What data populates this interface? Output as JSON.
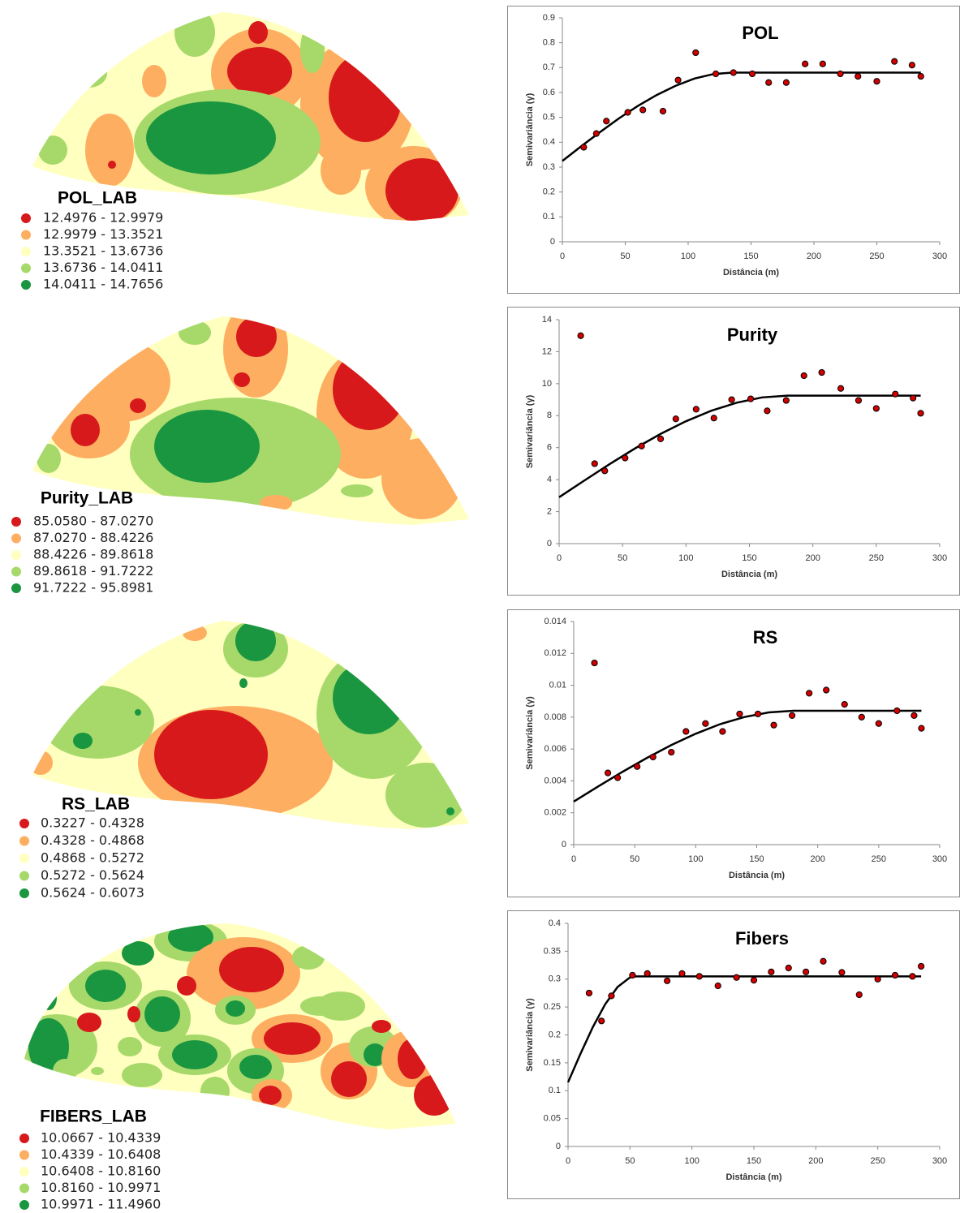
{
  "maps": [
    {
      "legend_title": "POL_LAB",
      "legend": [
        {
          "label": "12.4976 - 12.9979",
          "color": "#d7191c"
        },
        {
          "label": "12.9979 - 13.3521",
          "color": "#fdae61"
        },
        {
          "label": "13.3521 - 13.6736",
          "color": "#ffffbf"
        },
        {
          "label": "13.6736 - 14.0411",
          "color": "#a6d96a"
        },
        {
          "label": "14.0411 - 14.7656",
          "color": "#1a9641"
        }
      ]
    },
    {
      "legend_title": "Purity_LAB",
      "legend": [
        {
          "label": "85.0580 - 87.0270",
          "color": "#d7191c"
        },
        {
          "label": "87.0270 - 88.4226",
          "color": "#fdae61"
        },
        {
          "label": "88.4226 - 89.8618",
          "color": "#ffffbf"
        },
        {
          "label": "89.8618 - 91.7222",
          "color": "#a6d96a"
        },
        {
          "label": "91.7222 - 95.8981",
          "color": "#1a9641"
        }
      ]
    },
    {
      "legend_title": "RS_LAB",
      "legend": [
        {
          "label": "0.3227 - 0.4328",
          "color": "#d7191c"
        },
        {
          "label": "0.4328 - 0.4868",
          "color": "#fdae61"
        },
        {
          "label": "0.4868 - 0.5272",
          "color": "#ffffbf"
        },
        {
          "label": "0.5272 - 0.5624",
          "color": "#a6d96a"
        },
        {
          "label": "0.5624 - 0.6073",
          "color": "#1a9641"
        }
      ]
    },
    {
      "legend_title": "FIBERS_LAB",
      "legend": [
        {
          "label": "10.0667 - 10.4339",
          "color": "#d7191c"
        },
        {
          "label": "10.4339 - 10.6408",
          "color": "#fdae61"
        },
        {
          "label": "10.6408 - 10.8160",
          "color": "#ffffbf"
        },
        {
          "label": "10.8160 - 10.9971",
          "color": "#a6d96a"
        },
        {
          "label": "10.9971 - 11.4960",
          "color": "#1a9641"
        }
      ]
    }
  ],
  "chart_data": [
    {
      "type": "scatter",
      "title": "POL",
      "x_label": "Distância (m)",
      "y_label": "Semivariância (γ)",
      "xlim": [
        0,
        300
      ],
      "ylim": [
        0,
        0.9
      ],
      "xticks": [
        0,
        50,
        100,
        150,
        200,
        250,
        300
      ],
      "yticks": [
        0,
        0.1,
        0.2,
        0.3,
        0.4,
        0.5,
        0.6,
        0.7,
        0.8,
        0.9
      ],
      "points": {
        "color": "#d00000",
        "x": [
          17,
          27,
          35,
          52,
          64,
          80,
          92,
          106,
          122,
          136,
          151,
          164,
          178,
          193,
          207,
          221,
          235,
          250,
          264,
          278,
          285
        ],
        "y": [
          0.38,
          0.435,
          0.485,
          0.52,
          0.53,
          0.525,
          0.65,
          0.76,
          0.675,
          0.68,
          0.675,
          0.64,
          0.64,
          0.715,
          0.715,
          0.675,
          0.665,
          0.645,
          0.725,
          0.71,
          0.665
        ]
      },
      "fit": {
        "color": "#000000",
        "x": [
          0,
          15,
          30,
          45,
          60,
          75,
          90,
          105,
          120,
          135,
          285
        ],
        "y": [
          0.325,
          0.384,
          0.441,
          0.496,
          0.546,
          0.59,
          0.627,
          0.656,
          0.674,
          0.68,
          0.68
        ]
      }
    },
    {
      "type": "scatter",
      "title": "Purity",
      "x_label": "Distância (m)",
      "y_label": "Semivariância (γ)",
      "xlim": [
        0,
        300
      ],
      "ylim": [
        0,
        14
      ],
      "xticks": [
        0,
        50,
        100,
        150,
        200,
        250,
        300
      ],
      "yticks": [
        0,
        2,
        4,
        6,
        8,
        10,
        12,
        14
      ],
      "points": {
        "color": "#d00000",
        "x": [
          17,
          28,
          36,
          52,
          65,
          80,
          92,
          108,
          122,
          136,
          151,
          164,
          179,
          193,
          207,
          222,
          236,
          250,
          265,
          279,
          285
        ],
        "y": [
          13.0,
          5.0,
          4.55,
          5.35,
          6.1,
          6.55,
          7.8,
          8.4,
          7.85,
          9.0,
          9.05,
          8.3,
          8.95,
          10.5,
          10.7,
          9.7,
          8.95,
          8.45,
          9.35,
          9.1,
          8.15
        ]
      },
      "fit": {
        "color": "#000000",
        "x": [
          0,
          20,
          40,
          60,
          80,
          100,
          120,
          140,
          160,
          180,
          285
        ],
        "y": [
          2.9,
          3.95,
          4.98,
          5.96,
          6.86,
          7.65,
          8.31,
          8.81,
          9.14,
          9.25,
          9.25
        ]
      }
    },
    {
      "type": "scatter",
      "title": "RS",
      "x_label": "Distância (m)",
      "y_label": "Semivariância (γ)",
      "xlim": [
        0,
        300
      ],
      "ylim": [
        0,
        0.014
      ],
      "xticks": [
        0,
        50,
        100,
        150,
        200,
        250,
        300
      ],
      "yticks": [
        0,
        0.002,
        0.004,
        0.006,
        0.008,
        0.01,
        0.012,
        0.014
      ],
      "points": {
        "color": "#d00000",
        "x": [
          17,
          28,
          36,
          52,
          65,
          80,
          92,
          108,
          122,
          136,
          151,
          164,
          179,
          193,
          207,
          222,
          236,
          250,
          265,
          279,
          285
        ],
        "y": [
          0.0114,
          0.0045,
          0.0042,
          0.0049,
          0.0055,
          0.0058,
          0.0071,
          0.0076,
          0.0071,
          0.0082,
          0.0082,
          0.0075,
          0.0081,
          0.0095,
          0.0097,
          0.0088,
          0.008,
          0.0076,
          0.0084,
          0.0081,
          0.0073
        ]
      },
      "fit": {
        "color": "#000000",
        "x": [
          0,
          20,
          40,
          60,
          80,
          100,
          120,
          140,
          160,
          180,
          285
        ],
        "y": [
          0.0027,
          0.00365,
          0.00457,
          0.00544,
          0.00625,
          0.00696,
          0.00756,
          0.00801,
          0.0083,
          0.0084,
          0.0084
        ]
      }
    },
    {
      "type": "scatter",
      "title": "Fibers",
      "x_label": "Distância (m)",
      "y_label": "Semivariância (γ)",
      "xlim": [
        0,
        300
      ],
      "ylim": [
        0,
        0.4
      ],
      "xticks": [
        0,
        50,
        100,
        150,
        200,
        250,
        300
      ],
      "yticks": [
        0,
        0.05,
        0.1,
        0.15,
        0.2,
        0.25,
        0.3,
        0.35,
        0.4
      ],
      "points": {
        "color": "#d00000",
        "x": [
          17,
          27,
          35,
          52,
          64,
          80,
          92,
          106,
          121,
          136,
          150,
          164,
          178,
          192,
          206,
          221,
          235,
          250,
          264,
          278,
          285
        ],
        "y": [
          0.275,
          0.225,
          0.27,
          0.307,
          0.31,
          0.297,
          0.31,
          0.305,
          0.288,
          0.303,
          0.298,
          0.313,
          0.32,
          0.313,
          0.332,
          0.312,
          0.272,
          0.3,
          0.307,
          0.305,
          0.323
        ]
      },
      "fit": {
        "color": "#000000",
        "x": [
          0,
          10,
          20,
          30,
          40,
          50,
          55,
          285
        ],
        "y": [
          0.115,
          0.166,
          0.214,
          0.255,
          0.286,
          0.303,
          0.305,
          0.305
        ]
      }
    }
  ]
}
